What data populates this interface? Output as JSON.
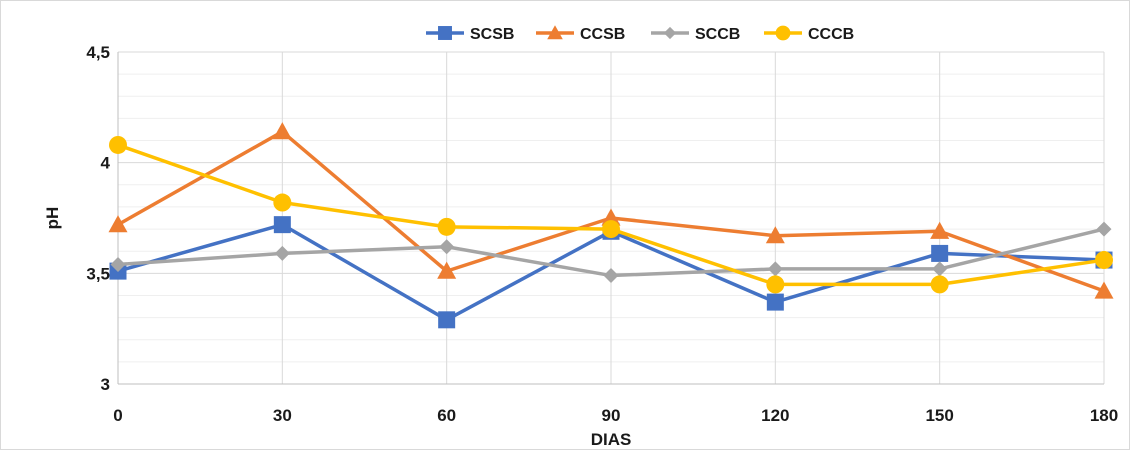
{
  "chart_data": {
    "type": "line",
    "title": "",
    "xlabel": "DIAS",
    "ylabel": "pH",
    "x": [
      0,
      30,
      60,
      90,
      120,
      150,
      180
    ],
    "x_tick_labels": [
      "0",
      "30",
      "60",
      "90",
      "120",
      "150",
      "180"
    ],
    "ylim": [
      3,
      4.5
    ],
    "y_ticks": [
      3,
      3.5,
      4,
      4.5
    ],
    "y_tick_labels": [
      "3",
      "3,5",
      "4",
      "4,5"
    ],
    "grid": true,
    "legend_position": "top",
    "series": [
      {
        "name": "SCSB",
        "color": "#4472C4",
        "marker": "square",
        "values": [
          3.51,
          3.72,
          3.29,
          3.69,
          3.37,
          3.59,
          3.56
        ]
      },
      {
        "name": "CCSB",
        "color": "#ED7D31",
        "marker": "triangle",
        "values": [
          3.72,
          4.14,
          3.51,
          3.75,
          3.67,
          3.69,
          3.42
        ]
      },
      {
        "name": "SCCB",
        "color": "#A5A5A5",
        "marker": "diamond",
        "values": [
          3.54,
          3.59,
          3.62,
          3.49,
          3.52,
          3.52,
          3.7
        ]
      },
      {
        "name": "CCCB",
        "color": "#FFC000",
        "marker": "circle",
        "values": [
          4.08,
          3.82,
          3.71,
          3.7,
          3.45,
          3.45,
          3.56
        ]
      }
    ]
  }
}
